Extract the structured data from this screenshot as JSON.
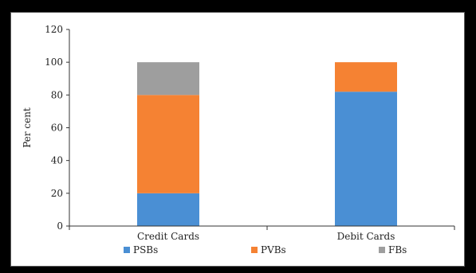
{
  "chart_data": {
    "type": "bar",
    "stacked": true,
    "categories": [
      "Credit Cards",
      "Debit Cards"
    ],
    "series": [
      {
        "name": "PSBs",
        "values": [
          20,
          82
        ],
        "color": "#4a8fd4"
      },
      {
        "name": "PVBs",
        "values": [
          60,
          18
        ],
        "color": "#f58233"
      },
      {
        "name": "FBs",
        "values": [
          20,
          0
        ],
        "color": "#9e9e9e"
      }
    ],
    "ylabel": "Per cent",
    "ylim": [
      0,
      120
    ],
    "yticks": [
      "0",
      "20",
      "40",
      "60",
      "80",
      "100",
      "120"
    ],
    "grid": false,
    "legend_position": "bottom"
  }
}
